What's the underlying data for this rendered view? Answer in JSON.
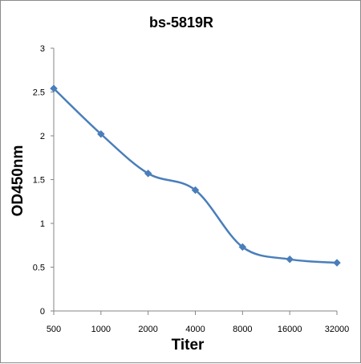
{
  "chart_data": {
    "type": "line",
    "title": "bs-5819R",
    "xlabel": "Titer",
    "ylabel": "OD450nm",
    "categories": [
      "500",
      "1000",
      "2000",
      "4000",
      "8000",
      "16000",
      "32000"
    ],
    "series": [
      {
        "values": [
          2.54,
          2.02,
          1.57,
          1.38,
          0.73,
          0.59,
          0.55
        ]
      }
    ],
    "ylim": [
      0,
      3
    ],
    "yticks": [
      "0",
      "0.5",
      "1",
      "1.5",
      "2",
      "2.5",
      "3"
    ],
    "grid": false,
    "smooth": true,
    "marker": "diamond",
    "line_color": "#4a7ebb"
  }
}
